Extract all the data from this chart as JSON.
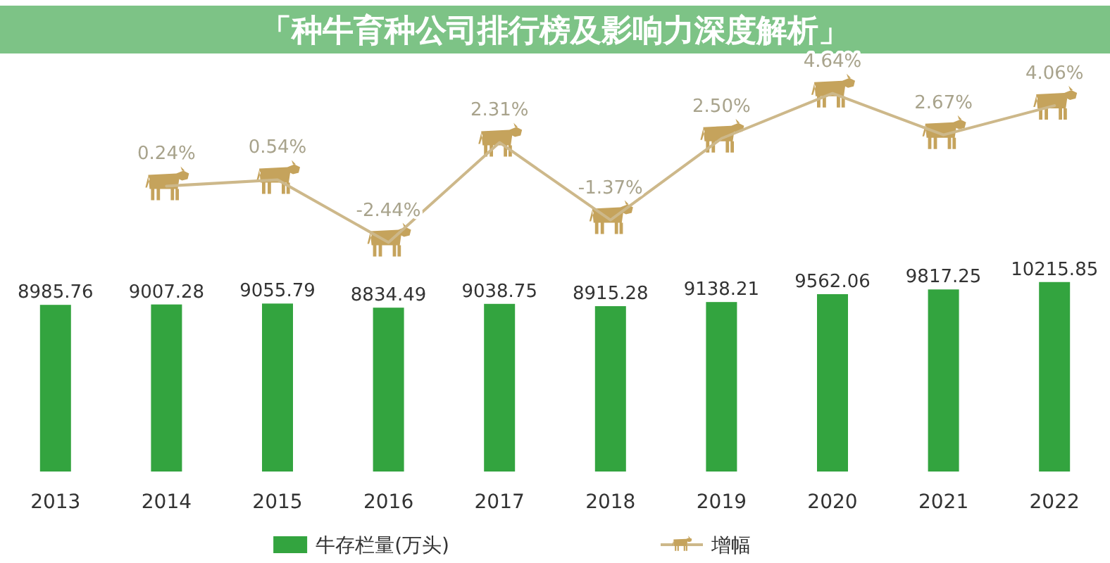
{
  "chart_data": [
    {
      "type": "line",
      "title": "「种牛育种公司排行榜及影响力深度解析」",
      "categories": [
        null,
        null,
        null,
        null,
        null,
        null,
        null,
        null,
        null,
        null
      ],
      "series": [
        {
          "name": "增幅",
          "color": "#cdb88a",
          "values": [
            null,
            0.24,
            0.54,
            -2.44,
            2.31,
            -1.37,
            2.5,
            4.64,
            2.67,
            4.06
          ],
          "value_labels": [
            null,
            "0.24%",
            "0.54%",
            "-2.44%",
            "2.31%",
            "-1.37%",
            "2.50%",
            "4.64%",
            "2.67%",
            "4.06%"
          ]
        }
      ],
      "legend": "bottom right",
      "line_style": "solid",
      "tick_labels": false
    },
    {
      "type": "bar",
      "categories": [
        "2013",
        "2014",
        "2015",
        "2016",
        "2017",
        "2018",
        "2019",
        "2020",
        "2021",
        "2022"
      ],
      "series": [
        {
          "name": "牛存栏量(万头)",
          "color": "#33a43f",
          "values": [
            8985.76,
            9007.28,
            9055.79,
            8834.49,
            9038.75,
            8915.28,
            9138.21,
            9562.06,
            9817.25,
            10215.85
          ]
        }
      ],
      "data_labels": true,
      "legend": "bottom left",
      "tick_labels": "x"
    }
  ]
}
